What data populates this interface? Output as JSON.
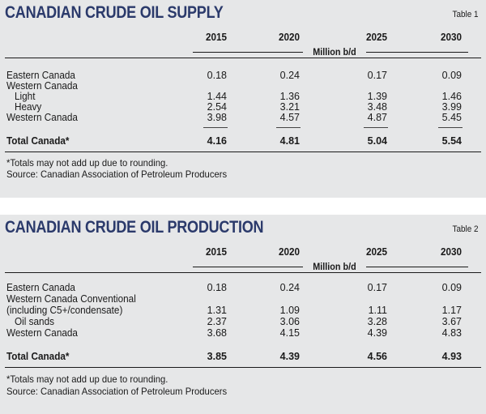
{
  "table1": {
    "title": "CANADIAN CRUDE OIL SUPPLY",
    "table_label": "Table 1",
    "years": [
      "2015",
      "2020",
      "2025",
      "2030"
    ],
    "unit": "Million b/d",
    "rows": [
      {
        "label": "Eastern Canada",
        "values": [
          "0.18",
          "0.24",
          "0.17",
          "0.09"
        ]
      },
      {
        "label": "Western Canada",
        "values": [
          "",
          "",
          "",
          ""
        ]
      },
      {
        "label": "Light",
        "values": [
          "1.44",
          "1.36",
          "1.39",
          "1.46"
        ]
      },
      {
        "label": "Heavy",
        "values": [
          "2.54",
          "3.21",
          "3.48",
          "3.99"
        ]
      },
      {
        "label": "Western Canada",
        "values": [
          "3.98",
          "4.57",
          "4.87",
          "5.45"
        ]
      }
    ],
    "total": {
      "label": "Total Canada*",
      "values": [
        "4.16",
        "4.81",
        "5.04",
        "5.54"
      ]
    },
    "notes": [
      "*Totals may not add up due to rounding.",
      "Source: Canadian Association of Petroleum Producers"
    ]
  },
  "table2": {
    "title": "CANADIAN CRUDE OIL PRODUCTION",
    "table_label": "Table 2",
    "years": [
      "2015",
      "2020",
      "2025",
      "2030"
    ],
    "unit": "Million b/d",
    "rows": [
      {
        "label": "Eastern Canada",
        "values": [
          "0.18",
          "0.24",
          "0.17",
          "0.09"
        ]
      },
      {
        "label": "Western Canada Conventional",
        "values": [
          "",
          "",
          "",
          ""
        ]
      },
      {
        "label": "(including C5+/condensate)",
        "values": [
          "1.31",
          "1.09",
          "1.11",
          "1.17"
        ]
      },
      {
        "label": "Oil sands",
        "values": [
          "2.37",
          "3.06",
          "3.28",
          "3.67"
        ]
      },
      {
        "label": "Western Canada",
        "values": [
          "3.68",
          "4.15",
          "4.39",
          "4.83"
        ]
      }
    ],
    "total": {
      "label": "Total Canada*",
      "values": [
        "3.85",
        "4.39",
        "4.56",
        "4.93"
      ]
    },
    "notes": [
      "*Totals may not add up due to rounding.",
      "Source: Canadian Association of Petroleum Producers"
    ]
  }
}
